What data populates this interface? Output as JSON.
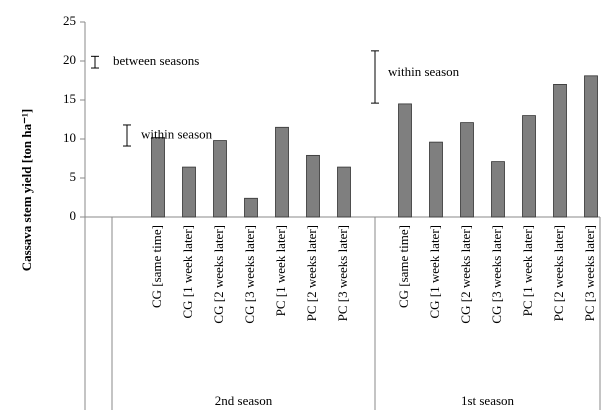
{
  "chart_data": {
    "type": "bar",
    "ylabel": "Cassava stem yield [ton ha⁻¹]",
    "ylim": [
      0,
      25
    ],
    "yticks": [
      0,
      5,
      10,
      15,
      20,
      25
    ],
    "color": "#7f7f7f",
    "groups": [
      {
        "name": "2nd season",
        "categories": [
          "CG [same time]",
          "CG [1 week later]",
          "CG [2 weeks later]",
          "CG [3 weeks later]",
          "PC [1 week later]",
          "PC [2 weeks later]",
          "PC [3 weeks later]"
        ],
        "values": [
          10.2,
          6.4,
          9.8,
          2.4,
          11.5,
          7.9,
          6.4
        ]
      },
      {
        "name": "1st season",
        "categories": [
          "CG [same time]",
          "CG [1 week later]",
          "CG [2 weeks later]",
          "CG [3 weeks later]",
          "PC [1 week later]",
          "PC [2 weeks later]",
          "PC [3 weeks later]"
        ],
        "values": [
          14.5,
          9.6,
          12.1,
          7.1,
          13.0,
          17.0,
          18.1
        ]
      }
    ],
    "error_bars": [
      {
        "label": "between seasons",
        "low": 19.1,
        "high": 20.6
      },
      {
        "label": "within season",
        "low": 9.1,
        "high": 11.8
      },
      {
        "label": "within season",
        "low": 14.6,
        "high": 21.3
      }
    ]
  }
}
